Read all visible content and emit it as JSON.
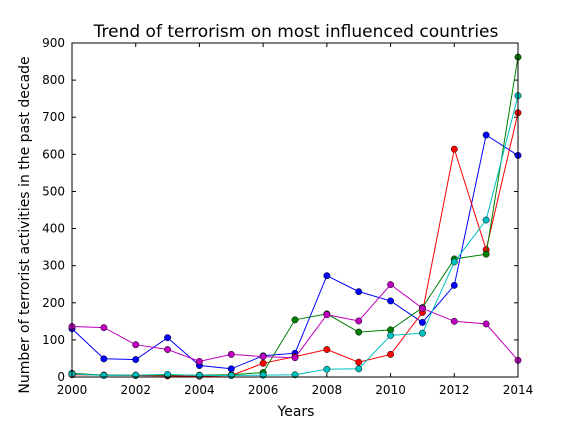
{
  "chart_data": {
    "type": "line",
    "title": "Trend of terrorism on most influenced countries",
    "xlabel": "Years",
    "ylabel": "Number of terrorist activities in the past decade",
    "xlim": [
      2000,
      2014
    ],
    "ylim": [
      0,
      900
    ],
    "xticks": [
      "2000",
      "2002",
      "2004",
      "2006",
      "2008",
      "2010",
      "2012",
      "2014"
    ],
    "yticks": [
      "0",
      "100",
      "200",
      "300",
      "400",
      "500",
      "600",
      "700",
      "800",
      "900"
    ],
    "x": [
      2000,
      2001,
      2002,
      2003,
      2004,
      2005,
      2006,
      2007,
      2008,
      2009,
      2010,
      2011,
      2012,
      2013,
      2014
    ],
    "grid": false,
    "series": [
      {
        "color": "#0000ff",
        "values": [
          130,
          49,
          47,
          106,
          31,
          22,
          57,
          64,
          273,
          230,
          205,
          147,
          247,
          652,
          597
        ]
      },
      {
        "color": "#ff0000",
        "values": [
          6,
          5,
          4,
          3,
          2,
          4,
          37,
          55,
          74,
          40,
          61,
          174,
          614,
          343,
          712
        ]
      },
      {
        "color": "#008000",
        "values": [
          10,
          5,
          5,
          5,
          5,
          6,
          12,
          154,
          170,
          121,
          127,
          187,
          318,
          331,
          862
        ]
      },
      {
        "color": "#bf00bf",
        "values": [
          136,
          133,
          87,
          74,
          42,
          61,
          55,
          52,
          168,
          151,
          249,
          185,
          150,
          143,
          45
        ]
      },
      {
        "color": "#00bfbf",
        "values": [
          8,
          4,
          5,
          7,
          4,
          4,
          5,
          6,
          21,
          22,
          112,
          118,
          310,
          423,
          758
        ]
      }
    ]
  }
}
